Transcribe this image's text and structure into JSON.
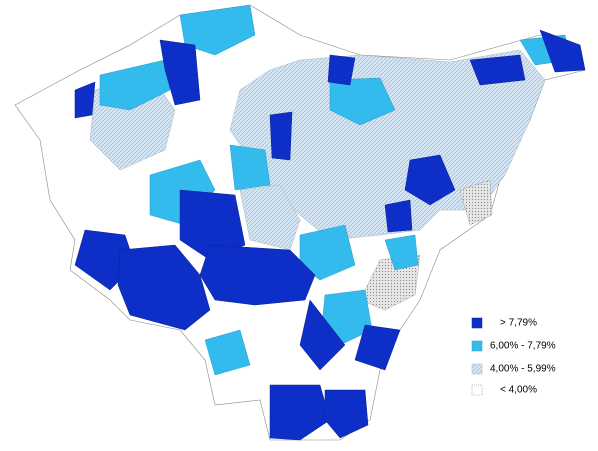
{
  "legend": {
    "items": [
      {
        "label": "> 7,79%"
      },
      {
        "label": "6,00% - 7,79%"
      },
      {
        "label": "4,00% - 5,99%"
      },
      {
        "label": "< 4,00%"
      }
    ]
  }
}
